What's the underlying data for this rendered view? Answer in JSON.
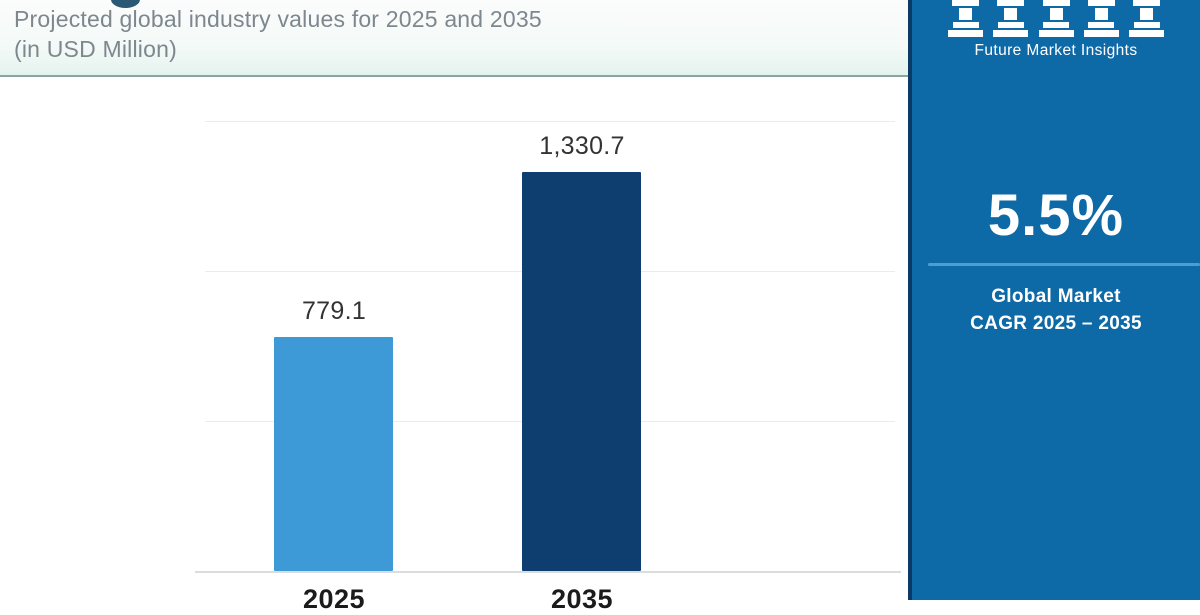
{
  "header": {
    "subtitle_line1": "Projected global industry values for 2025 and 2035",
    "subtitle_line2": "(in USD Million)"
  },
  "chart_data": {
    "type": "bar",
    "title": "Projected global industry values for 2025 and 2035 (in USD Million)",
    "categories": [
      "2025",
      "2035"
    ],
    "values": [
      779.1,
      1330.7
    ],
    "value_labels": [
      "779.1",
      "1,330.7"
    ],
    "unit": "USD Million",
    "ylim": [
      0,
      1500
    ],
    "ytick_step": 500,
    "grid": true,
    "legend": false,
    "bar_colors": [
      "#3d9ad7",
      "#0e3d70"
    ]
  },
  "side_panel": {
    "logo_icon": "fmi-pillars-icon",
    "brand_name": "Future Market Insights",
    "cagr_value": "5.5%",
    "cagr_label_line1": "Global Market",
    "cagr_label_line2": "CAGR 2025 – 2035",
    "colors": {
      "panel_bg": "#0e69a7",
      "panel_edge": "#0c3a68",
      "cagr_divider": "#4d9dd3",
      "header_divider": "#8ca69c"
    }
  }
}
